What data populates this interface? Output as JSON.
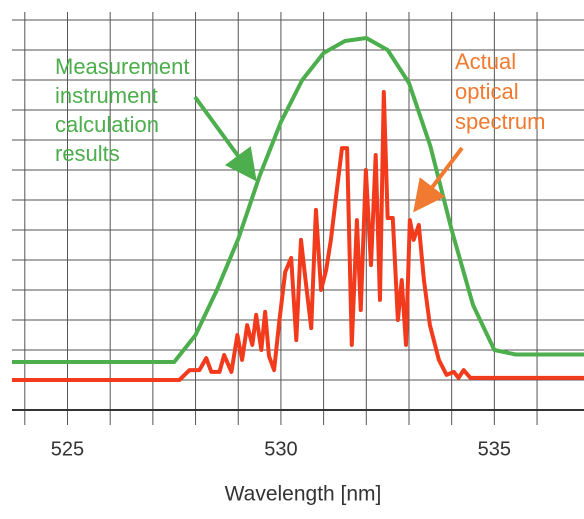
{
  "chart_data": {
    "type": "line",
    "xlabel": "Wavelength [nm]",
    "xlim": [
      523.7,
      537.1
    ],
    "ylim": [
      0,
      13
    ],
    "xticks": [
      525,
      530,
      535
    ],
    "xminor": [
      524,
      526,
      527,
      528,
      529,
      531,
      532,
      533,
      534,
      536
    ],
    "yticks": [
      1,
      2,
      3,
      4,
      5,
      6,
      7,
      8,
      9,
      10,
      11,
      12,
      13
    ],
    "grid": true,
    "series": [
      {
        "color": "#4cae4c",
        "x": [
          523.7,
          527.5,
          528,
          528.5,
          529,
          529.5,
          530,
          530.5,
          531,
          531.5,
          532,
          532.5,
          533,
          533.5,
          534,
          534.5,
          535,
          535.5,
          537.1
        ],
        "values": [
          1.6,
          1.6,
          2.5,
          4,
          5.7,
          7.8,
          9.6,
          11,
          11.9,
          12.3,
          12.4,
          12,
          10.9,
          8.8,
          6.0,
          3.5,
          2.0,
          1.85,
          1.85
        ]
      },
      {
        "color": "#f23a1c",
        "x": [
          523.7,
          527.62,
          527.86,
          528.09,
          528.25,
          528.37,
          528.56,
          528.67,
          528.84,
          528.98,
          529.09,
          529.21,
          529.33,
          529.42,
          529.54,
          529.63,
          529.72,
          529.84,
          529.96,
          530.1,
          530.24,
          530.36,
          530.47,
          530.59,
          530.71,
          530.82,
          530.94,
          531.06,
          531.17,
          531.31,
          531.43,
          531.55,
          531.66,
          531.78,
          531.87,
          531.99,
          532.11,
          532.22,
          532.32,
          532.41,
          532.5,
          532.62,
          532.74,
          532.83,
          532.93,
          533.02,
          533.11,
          533.23,
          533.35,
          533.49,
          533.7,
          533.88,
          534.05,
          534.16,
          534.28,
          534.44,
          537.1
        ],
        "values": [
          1.0,
          1.0,
          1.33,
          1.33,
          1.73,
          1.27,
          1.27,
          1.83,
          1.27,
          2.5,
          1.67,
          2.83,
          2.17,
          3.17,
          2.0,
          3.27,
          1.8,
          1.33,
          2.93,
          4.6,
          5.07,
          2.33,
          5.67,
          4.17,
          2.73,
          6.67,
          4.0,
          4.67,
          5.67,
          7.33,
          8.73,
          8.73,
          2.17,
          6.33,
          3.33,
          8.0,
          4.83,
          8.5,
          3.67,
          10.6,
          6.4,
          6.4,
          3.0,
          4.33,
          2.17,
          6.33,
          5.67,
          6.17,
          4.33,
          2.83,
          1.67,
          1.17,
          1.27,
          1.07,
          1.33,
          1.07,
          1.07
        ]
      }
    ],
    "annotations": [
      {
        "text": [
          "Measurement",
          "instrument",
          "calculation",
          "results"
        ],
        "color": "#4cae4c"
      },
      {
        "text": [
          "Actual",
          "optical",
          "spectrum"
        ],
        "color": "#f07a30"
      }
    ]
  }
}
